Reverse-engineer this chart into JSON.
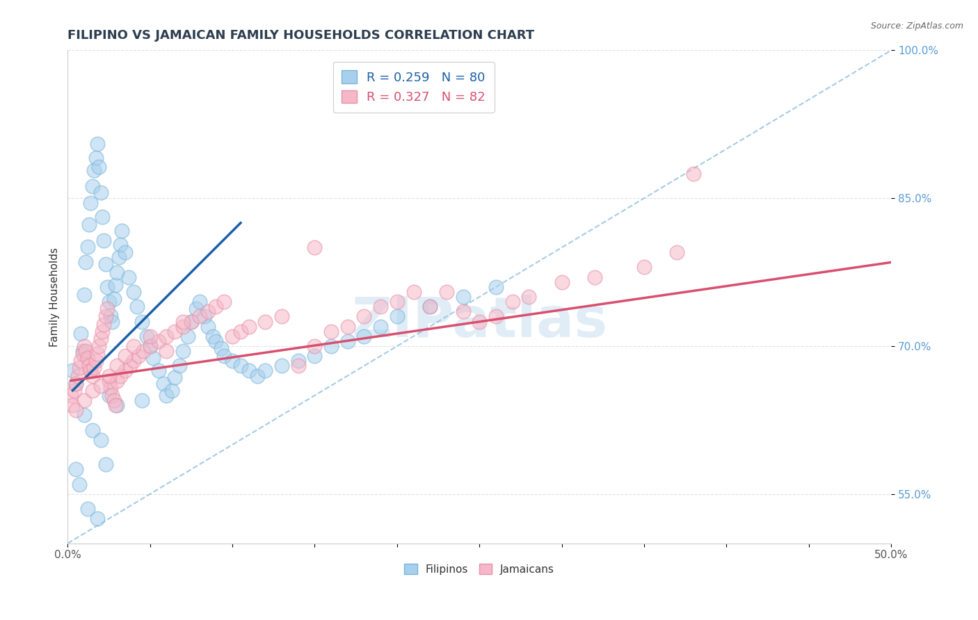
{
  "title": "FILIPINO VS JAMAICAN FAMILY HOUSEHOLDS CORRELATION CHART",
  "source": "Source: ZipAtlas.com",
  "ylabel": "Family Households",
  "xlim": [
    0.0,
    50.0
  ],
  "ylim": [
    50.0,
    100.0
  ],
  "xtick_positions": [
    0.0,
    5.0,
    10.0,
    15.0,
    20.0,
    25.0,
    30.0,
    35.0,
    40.0,
    45.0,
    50.0
  ],
  "xtick_labels_show": {
    "0.0": "0.0%",
    "50.0": "50.0%"
  },
  "ytick_positions": [
    55.0,
    70.0,
    85.0,
    100.0
  ],
  "ytick_labels": [
    "55.0%",
    "70.0%",
    "85.0%",
    "100.0%"
  ],
  "title_color": "#2c3e50",
  "title_fontsize": 13,
  "filipino_color": "#a8d0ed",
  "filipino_edge_color": "#7ab5d9",
  "jamaican_color": "#f5b8c8",
  "jamaican_edge_color": "#e890a8",
  "filipino_line_color": "#1a5fa8",
  "jamaican_line_color": "#d94f6e",
  "dashed_line_color": "#90bfdf",
  "watermark_text": "ZIPatlas",
  "watermark_color": "#c5ddef",
  "legend_label_filipino": "Filipinos",
  "legend_label_jamaican": "Jamaicans",
  "ytick_color": "#5b9bd5",
  "xtick_color": "#555555",
  "filipino_scatter_x": [
    0.3,
    0.5,
    0.8,
    0.9,
    1.0,
    1.1,
    1.2,
    1.3,
    1.4,
    1.5,
    1.6,
    1.7,
    1.8,
    1.9,
    2.0,
    2.1,
    2.2,
    2.3,
    2.4,
    2.5,
    2.6,
    2.7,
    2.8,
    2.9,
    3.0,
    3.1,
    3.2,
    3.3,
    3.5,
    3.7,
    4.0,
    4.2,
    4.5,
    4.8,
    5.0,
    5.2,
    5.5,
    5.8,
    6.0,
    6.3,
    6.5,
    6.8,
    7.0,
    7.3,
    7.5,
    7.8,
    8.0,
    8.3,
    8.5,
    8.8,
    9.0,
    9.3,
    9.5,
    10.0,
    10.5,
    11.0,
    11.5,
    12.0,
    13.0,
    14.0,
    15.0,
    16.0,
    17.0,
    18.0,
    19.0,
    20.0,
    22.0,
    24.0,
    26.0,
    1.0,
    1.5,
    2.0,
    2.5,
    3.0,
    0.5,
    0.7,
    1.2,
    1.8,
    2.3,
    4.5
  ],
  "filipino_scatter_y": [
    67.5,
    66.2,
    71.3,
    69.5,
    75.2,
    78.5,
    80.1,
    82.3,
    84.5,
    86.2,
    87.8,
    89.1,
    90.5,
    88.2,
    85.6,
    83.1,
    80.7,
    78.3,
    76.0,
    74.5,
    73.1,
    72.5,
    74.8,
    76.2,
    77.5,
    79.0,
    80.3,
    81.7,
    79.5,
    77.0,
    75.5,
    74.0,
    72.5,
    71.0,
    70.0,
    68.8,
    67.5,
    66.2,
    65.0,
    65.5,
    66.8,
    68.0,
    69.5,
    71.0,
    72.5,
    73.8,
    74.5,
    73.0,
    72.0,
    71.0,
    70.5,
    69.8,
    69.0,
    68.5,
    68.0,
    67.5,
    67.0,
    67.5,
    68.0,
    68.5,
    69.0,
    70.0,
    70.5,
    71.0,
    72.0,
    73.0,
    74.0,
    75.0,
    76.0,
    63.0,
    61.5,
    60.5,
    65.0,
    64.0,
    57.5,
    56.0,
    53.5,
    52.5,
    58.0,
    64.5
  ],
  "jamaican_scatter_x": [
    0.2,
    0.3,
    0.4,
    0.5,
    0.6,
    0.7,
    0.8,
    0.9,
    1.0,
    1.1,
    1.2,
    1.3,
    1.4,
    1.5,
    1.6,
    1.7,
    1.8,
    1.9,
    2.0,
    2.1,
    2.2,
    2.3,
    2.4,
    2.5,
    2.6,
    2.7,
    2.8,
    2.9,
    3.0,
    3.2,
    3.5,
    3.8,
    4.0,
    4.3,
    4.6,
    5.0,
    5.5,
    6.0,
    6.5,
    7.0,
    7.5,
    8.0,
    8.5,
    9.0,
    9.5,
    10.0,
    10.5,
    11.0,
    12.0,
    13.0,
    14.0,
    15.0,
    16.0,
    17.0,
    18.0,
    19.0,
    20.0,
    21.0,
    22.0,
    23.0,
    24.0,
    25.0,
    26.0,
    27.0,
    28.0,
    30.0,
    32.0,
    35.0,
    37.0,
    0.5,
    1.0,
    1.5,
    2.0,
    2.5,
    3.0,
    3.5,
    4.0,
    5.0,
    6.0,
    7.0,
    15.0,
    38.0
  ],
  "jamaican_scatter_y": [
    65.0,
    64.0,
    65.5,
    66.2,
    67.0,
    67.8,
    68.5,
    69.2,
    70.0,
    69.5,
    68.8,
    68.0,
    67.5,
    67.0,
    67.8,
    68.5,
    69.2,
    70.0,
    70.8,
    71.5,
    72.2,
    73.0,
    73.8,
    66.5,
    65.8,
    65.0,
    64.5,
    64.0,
    66.5,
    67.0,
    67.5,
    68.0,
    68.5,
    69.0,
    69.5,
    70.0,
    70.5,
    71.0,
    71.5,
    72.0,
    72.5,
    73.0,
    73.5,
    74.0,
    74.5,
    71.0,
    71.5,
    72.0,
    72.5,
    73.0,
    68.0,
    70.0,
    71.5,
    72.0,
    73.0,
    74.0,
    74.5,
    75.5,
    74.0,
    75.5,
    73.5,
    72.5,
    73.0,
    74.5,
    75.0,
    76.5,
    77.0,
    78.0,
    79.5,
    63.5,
    64.5,
    65.5,
    66.0,
    67.0,
    68.0,
    69.0,
    70.0,
    71.0,
    69.5,
    72.5,
    80.0,
    87.5
  ],
  "filipinos_trendline_x0": 0.3,
  "filipinos_trendline_x1": 10.5,
  "filipinos_trendline_y0": 65.5,
  "filipinos_trendline_y1": 82.5,
  "jamaicans_trendline_x0": 0.2,
  "jamaicans_trendline_x1": 50.0,
  "jamaicans_trendline_y0": 66.5,
  "jamaicans_trendline_y1": 78.5
}
